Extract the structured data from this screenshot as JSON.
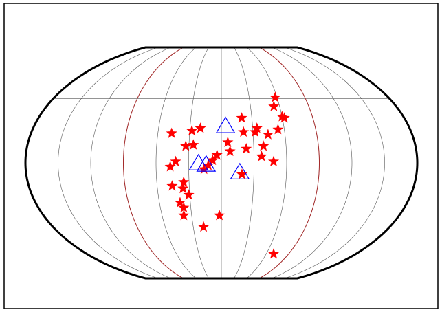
{
  "chart_data": {
    "type": "scatter",
    "projection": "pseudocylindrical",
    "xlim": [
      -180,
      180
    ],
    "ylim": [
      -90,
      90
    ],
    "xticks": [
      -150,
      -120,
      -90,
      -60,
      -30,
      0,
      30,
      60,
      90,
      120,
      150
    ],
    "yticks": [
      -50,
      50
    ],
    "grid": true,
    "grid_color": "#555555",
    "reference_meridians": [
      -90,
      90
    ],
    "reference_color": "#a52a2a",
    "outline_color": "#000000",
    "series": [
      {
        "marker": "star",
        "color": "#ff0000",
        "x": [
          58,
          54,
          60,
          62,
          20,
          -20,
          -28,
          -47,
          34,
          32,
          21,
          44,
          54,
          6,
          8,
          23,
          39,
          -26,
          -33,
          -4,
          -8,
          -12,
          37,
          48,
          -47,
          -42,
          -16,
          19,
          -35,
          -46,
          -36,
          -31,
          -40,
          -37,
          -38,
          -2,
          -19,
          70
        ],
        "values": [
          51,
          44,
          36,
          35,
          35,
          27,
          25,
          23,
          27,
          24,
          24,
          22,
          26,
          16,
          9,
          11,
          13,
          14,
          13,
          6,
          2,
          -2,
          5,
          1,
          -3,
          1,
          -5,
          -9,
          -15,
          -18,
          -20,
          -25,
          -31,
          -35,
          -41,
          -41,
          -50,
          -71
        ]
      },
      {
        "marker": "triangle",
        "color": "#0000ff",
        "x": [
          4,
          -21,
          -14,
          17
        ],
        "values": [
          28,
          -1,
          -2,
          -8
        ]
      }
    ]
  }
}
